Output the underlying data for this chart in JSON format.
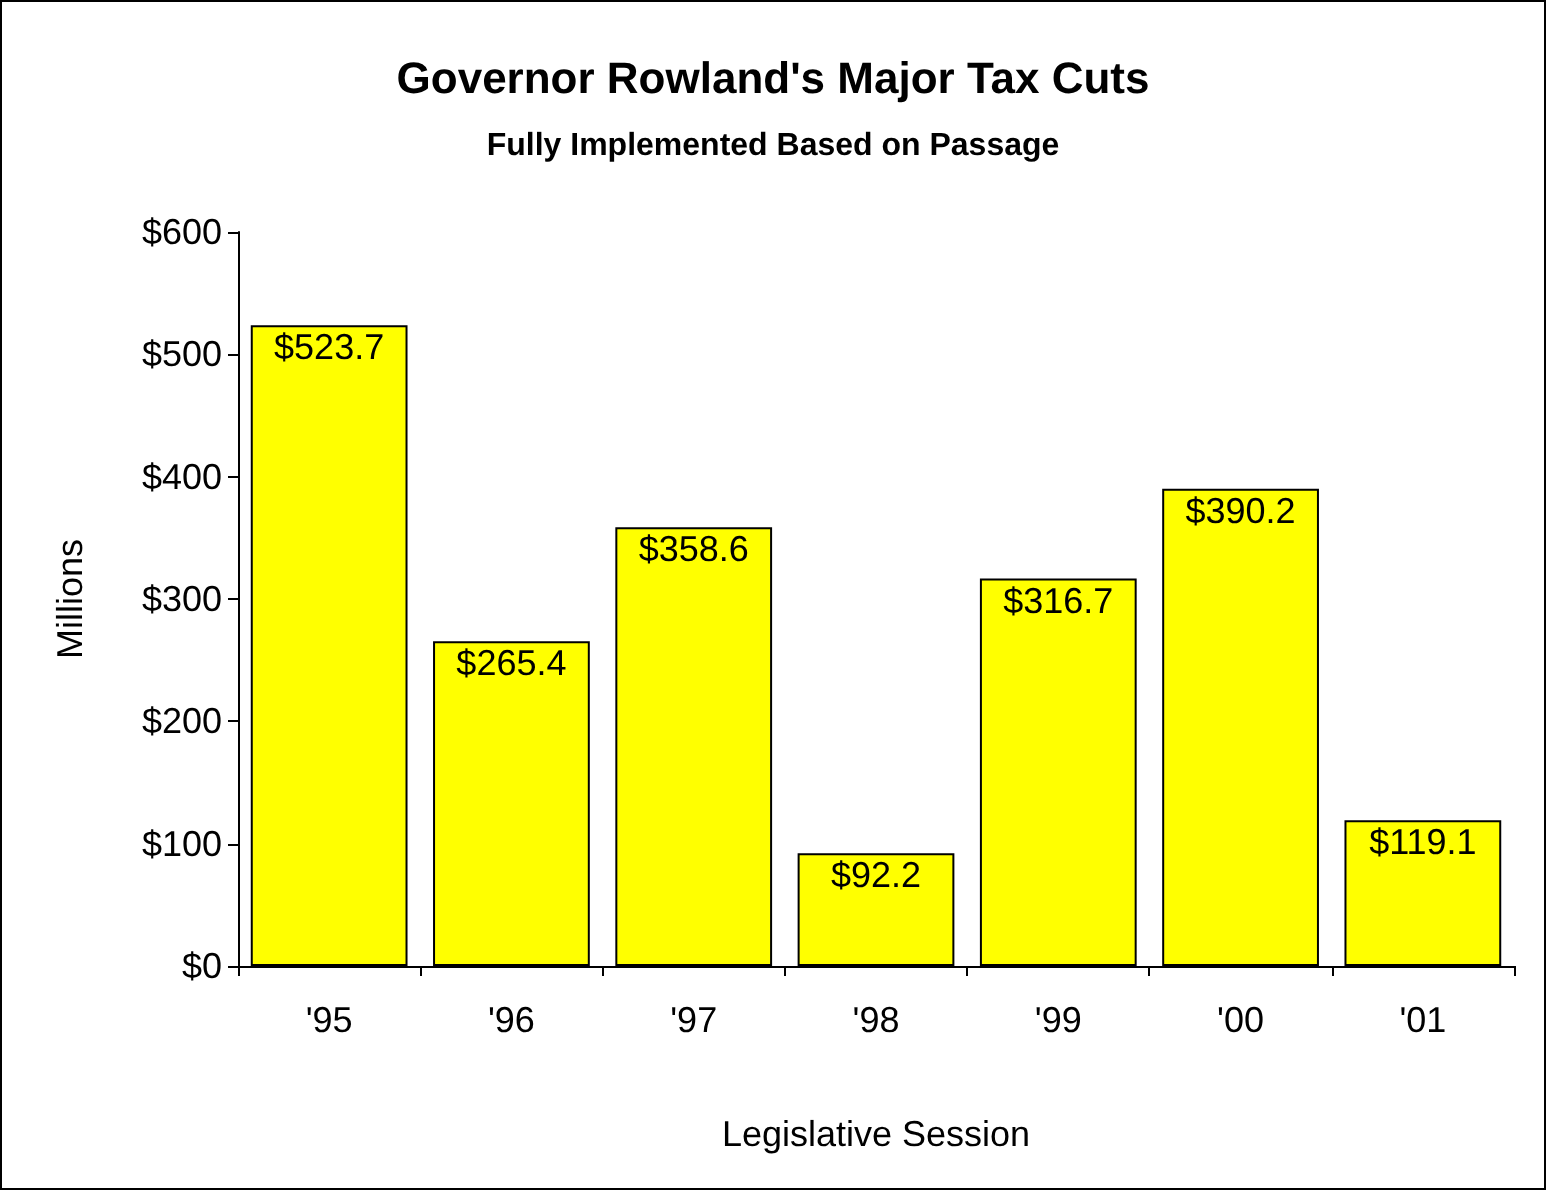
{
  "chart_data": {
    "type": "bar",
    "title": "Governor Rowland's Major Tax Cuts",
    "subtitle": "Fully Implemented Based on Passage",
    "xlabel": "Legislative Session",
    "ylabel": "Millions",
    "categories": [
      "'95",
      "'96",
      "'97",
      "'98",
      "'99",
      "'00",
      "'01"
    ],
    "values": [
      523.7,
      265.4,
      358.6,
      92.2,
      316.7,
      390.2,
      119.1
    ],
    "value_labels": [
      "$523.7",
      "$265.4",
      "$358.6",
      "$92.2",
      "$316.7",
      "$390.2",
      "$119.1"
    ],
    "color": "#ffff00",
    "ylim": [
      0,
      600
    ],
    "yticks": [
      {
        "value": 0,
        "label": "$0"
      },
      {
        "value": 100,
        "label": "$100"
      },
      {
        "value": 200,
        "label": "$200"
      },
      {
        "value": 300,
        "label": "$300"
      },
      {
        "value": 400,
        "label": "$400"
      },
      {
        "value": 500,
        "label": "$500"
      },
      {
        "value": 600,
        "label": "$600"
      }
    ],
    "grid": false
  }
}
